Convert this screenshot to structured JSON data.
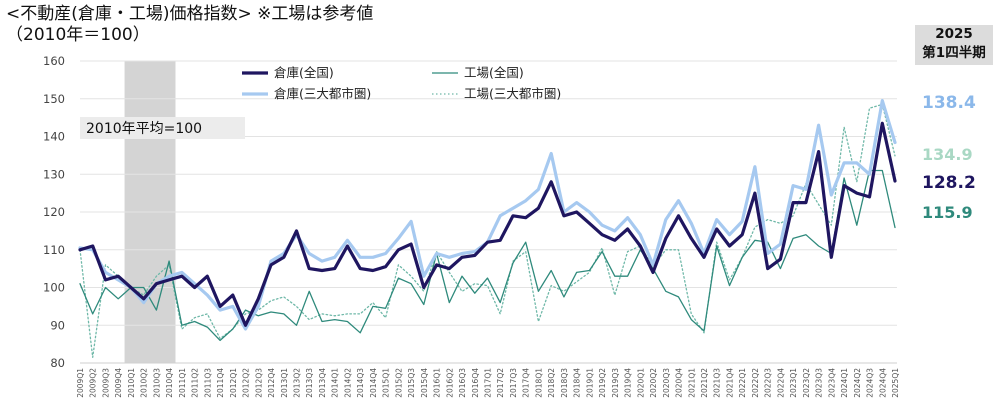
{
  "chart_data": {
    "type": "line",
    "title": "<不動産(倉庫・工場)価格指数> ※工場は参考値",
    "subtitle": "（2010年＝100）",
    "period_label_line1": "2025",
    "period_label_line2": "第1四半期",
    "annotation": "2010年平均=100",
    "ylim": [
      80,
      160
    ],
    "yticks": [
      "80",
      "90",
      "100",
      "110",
      "120",
      "130",
      "140",
      "150",
      "160"
    ],
    "shaded_range": [
      "2010Q1",
      "2010Q4"
    ],
    "x": [
      "2009Q1",
      "2009Q2",
      "2009Q3",
      "2009Q4",
      "2010Q1",
      "2010Q2",
      "2010Q3",
      "2010Q4",
      "2011Q1",
      "2011Q2",
      "2011Q3",
      "2011Q4",
      "2012Q1",
      "2012Q2",
      "2012Q3",
      "2012Q4",
      "2013Q1",
      "2013Q2",
      "2013Q3",
      "2013Q4",
      "2014Q1",
      "2014Q2",
      "2014Q3",
      "2014Q4",
      "2015Q1",
      "2015Q2",
      "2015Q3",
      "2015Q4",
      "2016Q1",
      "2016Q2",
      "2016Q3",
      "2016Q4",
      "2017Q1",
      "2017Q2",
      "2017Q3",
      "2017Q4",
      "2018Q1",
      "2018Q2",
      "2018Q3",
      "2018Q4",
      "2019Q1",
      "2019Q2",
      "2019Q3",
      "2019Q4",
      "2020Q1",
      "2020Q2",
      "2020Q3",
      "2020Q4",
      "2021Q1",
      "2021Q2",
      "2021Q3",
      "2021Q4",
      "2022Q1",
      "2022Q2",
      "2022Q3",
      "2022Q4",
      "2023Q1",
      "2023Q2",
      "2023Q3",
      "2023Q4",
      "2024Q1",
      "2024Q2",
      "2024Q3",
      "2024Q4",
      "2025Q1"
    ],
    "series": [
      {
        "name": "倉庫(全国)",
        "color": "#1f1660",
        "style": "thick",
        "end_label": "128.2",
        "values": [
          110,
          111,
          102,
          103,
          100,
          97,
          101,
          102,
          103,
          100,
          103,
          95,
          98,
          90,
          97,
          106,
          108,
          115,
          105,
          104.5,
          105,
          111,
          105,
          104.5,
          105.5,
          110,
          111.5,
          100,
          106,
          105,
          108,
          108.5,
          112,
          112.5,
          119,
          118.5,
          121,
          128,
          119,
          120,
          117,
          114,
          112.5,
          115.5,
          111,
          104,
          113,
          119,
          113,
          108,
          115.5,
          111,
          114,
          125,
          105,
          107.5,
          122.5,
          122.5,
          136,
          108,
          127,
          125,
          124,
          143.5,
          128.2
        ]
      },
      {
        "name": "倉庫(三大都市圏)",
        "color": "#a6c9f0",
        "style": "thick",
        "end_label": "138.4",
        "values": [
          110.5,
          110,
          104,
          102,
          100,
          96,
          101,
          103,
          104,
          101,
          98,
          94,
          95,
          89,
          95,
          107,
          109,
          114,
          109,
          107,
          108,
          112.5,
          108,
          108,
          109,
          113,
          117.5,
          103,
          109,
          108,
          109,
          109.5,
          112,
          119,
          121,
          123,
          126,
          135.5,
          120,
          122.5,
          120,
          116.5,
          115,
          118.5,
          114,
          106,
          118,
          123,
          117,
          109,
          118,
          114,
          117.5,
          132,
          109,
          111.5,
          127,
          126,
          143,
          124.5,
          133,
          133,
          130,
          149.5,
          138.4
        ]
      },
      {
        "name": "工場(全国)",
        "color": "#2f8a7c",
        "style": "thin",
        "end_label": "115.9",
        "values": [
          101,
          93,
          100,
          97,
          100,
          100,
          94,
          107,
          90,
          91,
          89.5,
          86,
          89,
          94,
          92.5,
          93.5,
          93,
          90,
          99,
          91,
          91.5,
          91,
          88,
          95,
          94.5,
          102.5,
          101,
          95.5,
          109,
          96,
          103,
          98.5,
          102.5,
          96,
          106.5,
          112,
          99,
          104.5,
          97.5,
          104,
          104.5,
          109.5,
          103,
          103,
          110,
          105,
          99,
          97.5,
          91.5,
          88.5,
          111,
          100.5,
          108,
          112.5,
          112,
          105,
          113,
          114,
          111,
          109,
          129,
          116.5,
          131,
          131,
          115.9
        ]
      },
      {
        "name": "工場(三大都市圏)",
        "color": "#6fb8a8",
        "style": "dotted",
        "end_label": "134.9",
        "values": [
          110,
          81.5,
          106,
          103,
          100,
          98,
          103,
          106,
          89,
          92,
          93,
          86.5,
          89,
          93,
          94,
          96.5,
          97.5,
          95,
          91.5,
          93,
          92.5,
          93,
          93,
          96,
          92,
          106,
          103,
          99,
          109.5,
          104,
          99,
          101,
          100.5,
          93,
          107,
          109.5,
          91,
          100.5,
          99,
          101.5,
          104,
          110.5,
          98,
          109.5,
          111,
          105.5,
          110,
          110,
          93,
          88,
          112,
          102,
          108,
          116,
          118,
          117,
          119,
          127.5,
          122,
          116.5,
          142.5,
          128,
          147.5,
          148.5,
          134.9
        ]
      }
    ]
  }
}
